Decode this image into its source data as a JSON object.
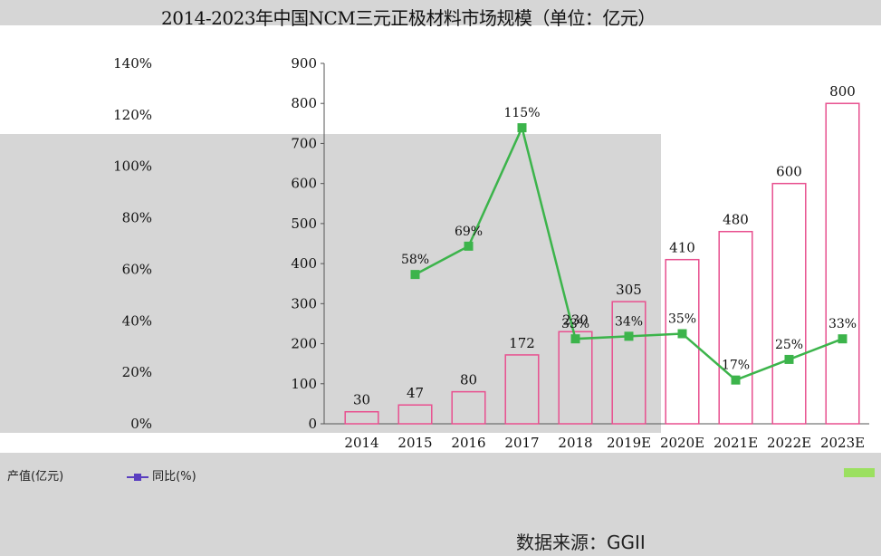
{
  "title": "2014-2023年中国NCM三元正极材料市场规模（单位：亿元）",
  "source": "数据来源：GGII",
  "legend": {
    "series1": "产值(亿元)",
    "series2": "同比(%)"
  },
  "chart_data": {
    "type": "bar",
    "title": "2014-2023年中国NCM三元正极材料市场规模（单位：亿元）",
    "categories": [
      "2014",
      "2015",
      "2016",
      "2017",
      "2018",
      "2019E",
      "2020E",
      "2021E",
      "2022E",
      "2023E"
    ],
    "series": [
      {
        "name": "产值(亿元)",
        "type": "bar",
        "values": [
          30,
          47,
          80,
          172,
          230,
          305,
          410,
          480,
          600,
          800
        ]
      },
      {
        "name": "同比(%)",
        "type": "line",
        "axis": "right",
        "values": [
          null,
          58,
          69,
          115,
          33,
          34,
          35,
          17,
          25,
          33
        ]
      }
    ],
    "ylim": [
      0,
      900
    ],
    "y2lim": [
      0,
      140
    ],
    "y_ticks": [
      "0",
      "100",
      "200",
      "300",
      "400",
      "500",
      "600",
      "700",
      "800",
      "900"
    ],
    "y2_ticks": [
      "0%",
      "20%",
      "40%",
      "60%",
      "80%",
      "100%",
      "120%",
      "140%"
    ],
    "bar_labels": [
      "30",
      "47",
      "80",
      "172",
      "230",
      "305",
      "410",
      "480",
      "600",
      "800"
    ],
    "line_labels": [
      "",
      "58%",
      "69%",
      "115%",
      "33%",
      "34%",
      "35%",
      "17%",
      "25%",
      "33%"
    ],
    "colors": {
      "bar": "#e8508f",
      "line": "#3cb44b",
      "marker": "#5a3fc0"
    }
  }
}
